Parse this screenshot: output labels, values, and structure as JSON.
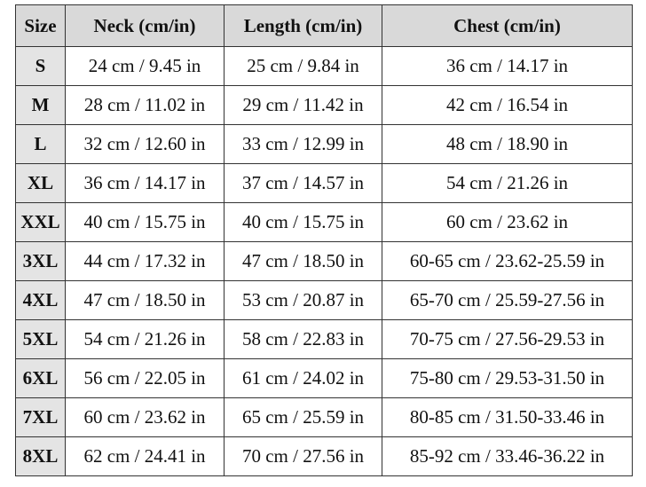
{
  "table": {
    "header": [
      "Size",
      "Neck (cm/in)",
      "Length (cm/in)",
      "Chest (cm/in)"
    ],
    "rows": [
      [
        "S",
        "24 cm / 9.45 in",
        "25 cm / 9.84 in",
        "36 cm / 14.17 in"
      ],
      [
        "M",
        "28 cm / 11.02 in",
        "29 cm / 11.42 in",
        "42 cm / 16.54 in"
      ],
      [
        "L",
        "32 cm / 12.60 in",
        "33 cm / 12.99 in",
        "48 cm / 18.90 in"
      ],
      [
        "XL",
        "36 cm / 14.17 in",
        "37 cm / 14.57 in",
        "54 cm / 21.26 in"
      ],
      [
        "XXL",
        "40 cm / 15.75 in",
        "40 cm / 15.75 in",
        "60 cm / 23.62 in"
      ],
      [
        "3XL",
        "44 cm / 17.32 in",
        "47 cm / 18.50 in",
        "60-65 cm / 23.62-25.59 in"
      ],
      [
        "4XL",
        "47 cm / 18.50 in",
        "53 cm / 20.87 in",
        "65-70 cm / 25.59-27.56 in"
      ],
      [
        "5XL",
        "54 cm / 21.26 in",
        "58 cm / 22.83 in",
        "70-75 cm / 27.56-29.53 in"
      ],
      [
        "6XL",
        "56 cm / 22.05 in",
        "61 cm / 24.02 in",
        "75-80 cm / 29.53-31.50 in"
      ],
      [
        "7XL",
        "60 cm / 23.62 in",
        "65 cm / 25.59 in",
        "80-85 cm / 31.50-33.46 in"
      ],
      [
        "8XL",
        "62 cm / 24.41 in",
        "70 cm / 27.56 in",
        "85-92 cm / 33.46-36.22 in"
      ]
    ]
  }
}
